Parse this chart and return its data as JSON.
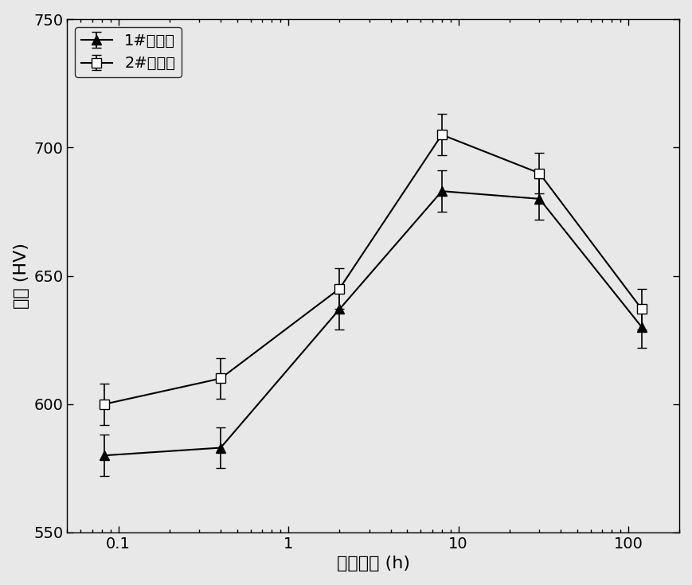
{
  "series1": {
    "label": "1#试验钢",
    "x": [
      0.083,
      0.4,
      2,
      8,
      30,
      120
    ],
    "y": [
      580,
      583,
      637,
      683,
      680,
      630
    ],
    "yerr": [
      8,
      8,
      8,
      8,
      8,
      8
    ],
    "marker": "^",
    "color": "black",
    "markerfacecolor": "black"
  },
  "series2": {
    "label": "2#试验钢",
    "x": [
      0.083,
      0.4,
      2,
      8,
      30,
      120
    ],
    "y": [
      600,
      610,
      645,
      705,
      690,
      637
    ],
    "yerr": [
      8,
      8,
      8,
      8,
      8,
      8
    ],
    "marker": "s",
    "color": "black",
    "markerfacecolor": "white"
  },
  "xlabel": "时效时间 (h)",
  "ylabel": "硬度 (HV)",
  "ylim": [
    550,
    750
  ],
  "xticks": [
    0.1,
    1,
    10,
    100
  ],
  "xtick_labels": [
    "0.1",
    "1",
    "10",
    "100"
  ],
  "title": "",
  "background_color": "#e8e8e8",
  "plot_background_color": "#e8e8e8",
  "legend_loc": "upper left",
  "fontsize_label": 16,
  "fontsize_tick": 14,
  "fontsize_legend": 14,
  "linewidth": 1.5,
  "markersize": 9,
  "capsize": 4,
  "elinewidth": 1.2
}
